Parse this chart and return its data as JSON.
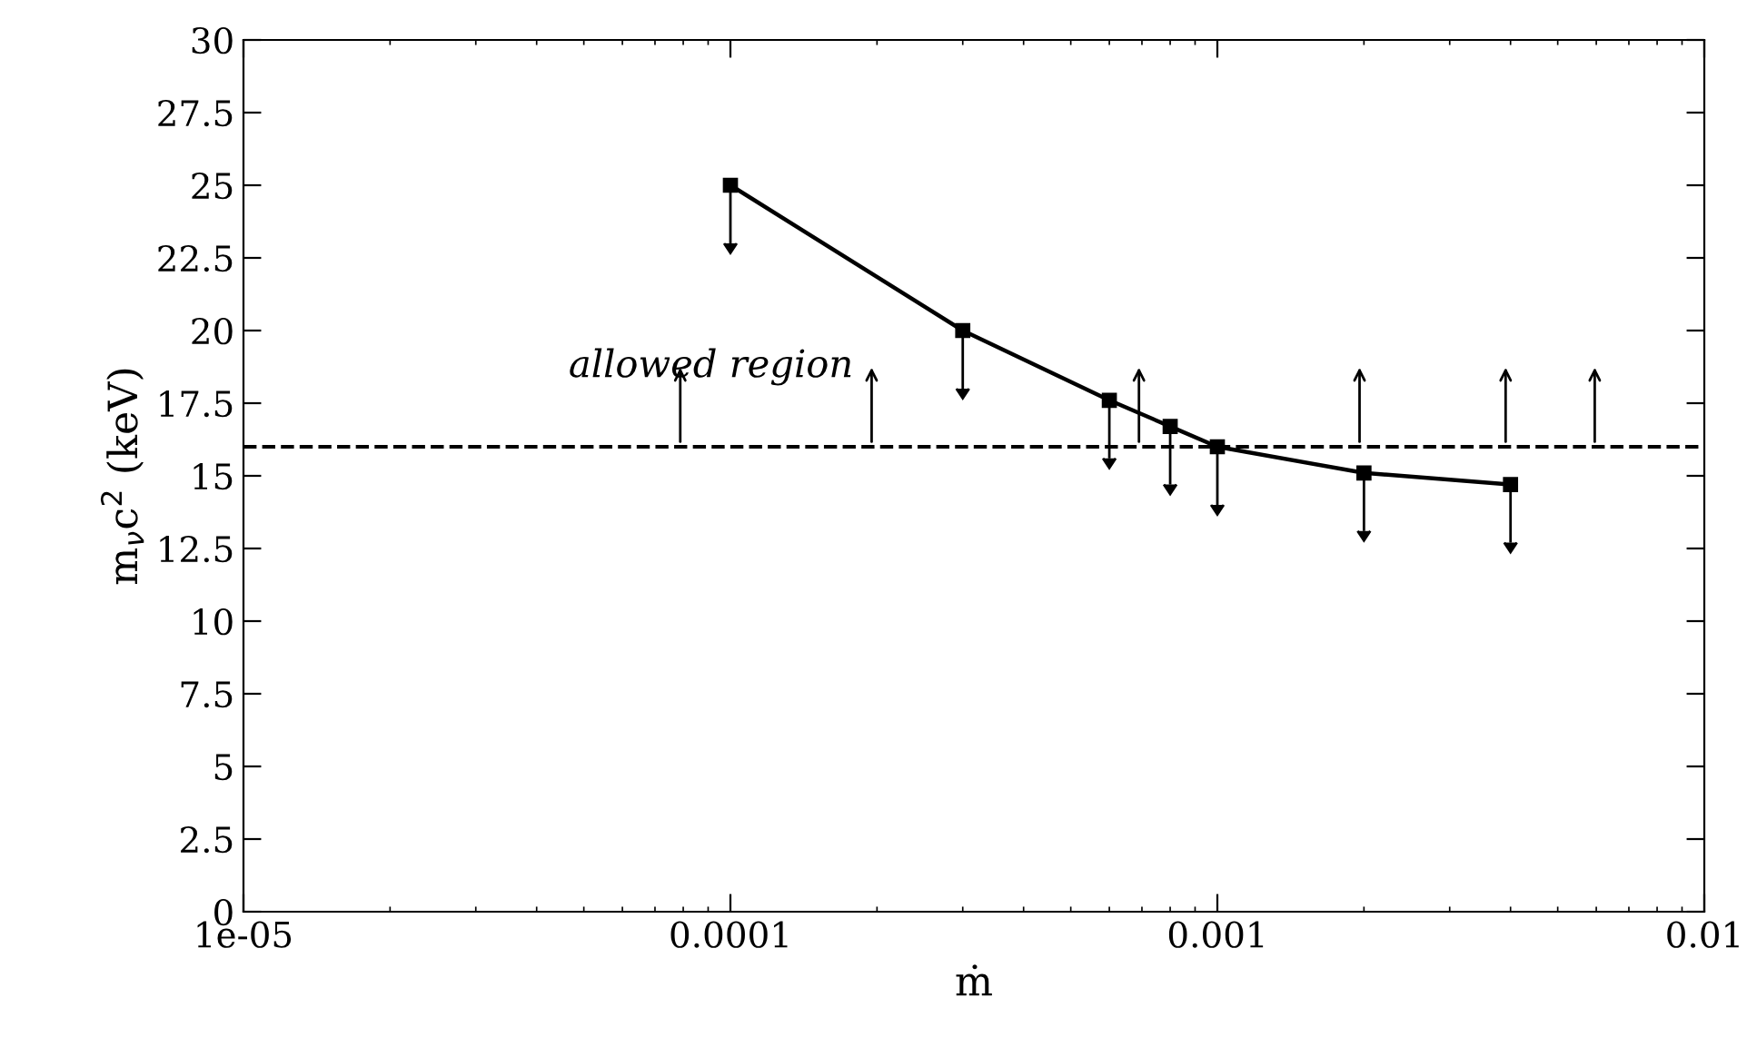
{
  "chart_data": {
    "type": "line",
    "xlabel": "ṁ",
    "ylabel": "m$_{ν}$c$^{2}$ (keV)",
    "x": [
      0.0001,
      0.0003,
      0.0006,
      0.0008,
      0.001,
      0.002,
      0.004
    ],
    "series": [
      {
        "color": "#000000",
        "values": [
          25,
          20,
          17.6,
          16.7,
          16.0,
          15.1,
          14.7
        ],
        "errors": [
          [
            23,
            25
          ],
          [
            18,
            20
          ],
          [
            15.6,
            17.6
          ],
          [
            14.7,
            16.7
          ],
          [
            14,
            16
          ],
          [
            13.1,
            15.1
          ],
          [
            12.7,
            14.7
          ]
        ]
      }
    ],
    "marker": "square",
    "line_style": "solid",
    "log": "x",
    "xlim": [
      1e-05,
      0.01
    ],
    "xticks": [
      {
        "value": 1e-05,
        "label": "1e-05"
      },
      {
        "value": 0.0001,
        "label": "0.0001"
      },
      {
        "value": 0.001,
        "label": "0.001"
      },
      {
        "value": 0.01,
        "label": "0.01"
      }
    ],
    "ylim": [
      0,
      30
    ],
    "yticks": [
      0,
      2.5,
      5,
      7.5,
      10,
      12.5,
      15,
      17.5,
      20,
      22.5,
      25,
      27.5,
      30
    ],
    "ref_lines": [
      {
        "axis": "y",
        "value": 16.0,
        "line_style": "dashed",
        "color": "#000000"
      }
    ],
    "annotations": [
      "allowed region"
    ],
    "grid": false,
    "legend": false
  }
}
